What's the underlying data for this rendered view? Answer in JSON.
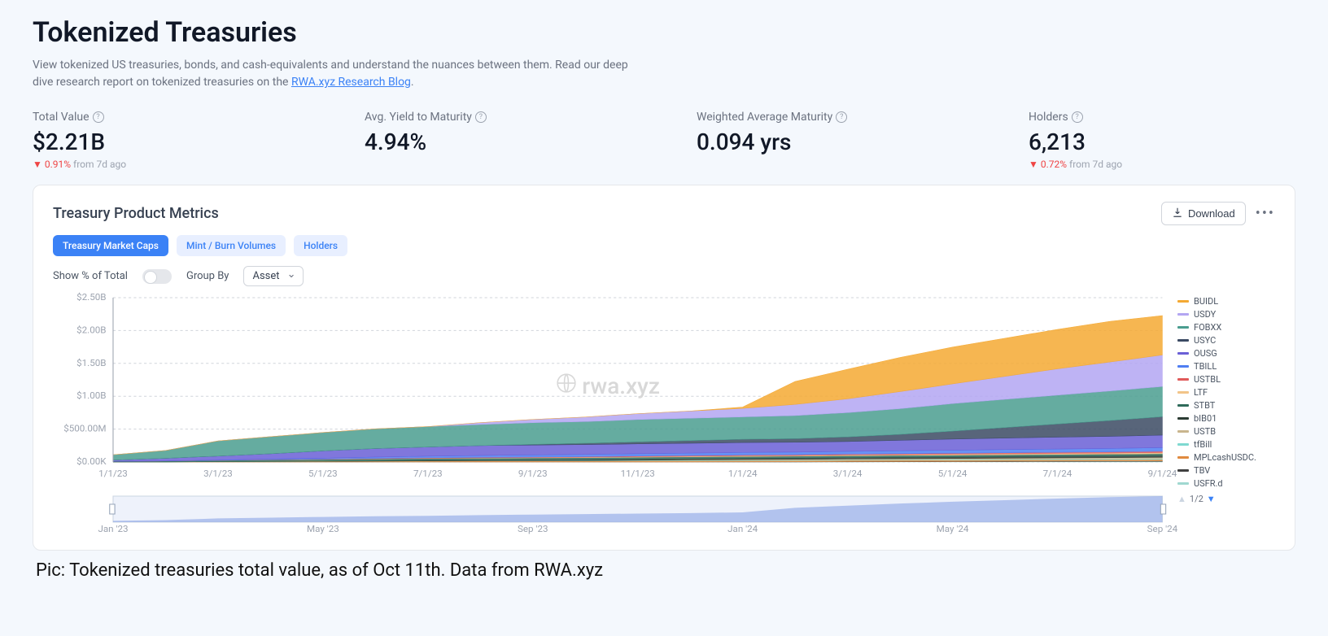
{
  "header": {
    "title": "Tokenized Treasuries",
    "subtitle_pre": "View tokenized US treasuries, bonds, and cash-equivalents and understand the nuances between them. Read our deep dive research report on tokenized treasuries on the ",
    "subtitle_link": "RWA.xyz Research Blog",
    "subtitle_post": "."
  },
  "metrics": [
    {
      "label": "Total Value",
      "value": "$2.21B",
      "change_pct": "0.91%",
      "change_dir": "down",
      "change_suffix": "from 7d ago"
    },
    {
      "label": "Avg. Yield to Maturity",
      "value": "4.94%",
      "change_pct": "",
      "change_dir": "",
      "change_suffix": ""
    },
    {
      "label": "Weighted Average Maturity",
      "value": "0.094 yrs",
      "change_pct": "",
      "change_dir": "",
      "change_suffix": ""
    },
    {
      "label": "Holders",
      "value": "6,213",
      "change_pct": "0.72%",
      "change_dir": "down",
      "change_suffix": "from 7d ago"
    }
  ],
  "card": {
    "title": "Treasury Product Metrics",
    "download_label": "Download",
    "tabs": [
      {
        "label": "Treasury Market Caps",
        "active": true
      },
      {
        "label": "Mint / Burn Volumes",
        "active": false
      },
      {
        "label": "Holders",
        "active": false
      }
    ],
    "show_pct_label": "Show % of Total",
    "show_pct_on": false,
    "groupby_label": "Group By",
    "groupby_value": "Asset"
  },
  "chart": {
    "type": "stacked-area",
    "background_color": "#ffffff",
    "grid_color": "#d1d5db",
    "axis_font_size": 11,
    "axis_color": "#9ca3af",
    "ylim": [
      0,
      2500000000
    ],
    "y_ticks": [
      {
        "v": 0,
        "label": "$0.00K"
      },
      {
        "v": 500000000,
        "label": "$500.00M"
      },
      {
        "v": 1000000000,
        "label": "$1.00B"
      },
      {
        "v": 1500000000,
        "label": "$1.50B"
      },
      {
        "v": 2000000000,
        "label": "$2.00B"
      },
      {
        "v": 2500000000,
        "label": "$2.50B"
      }
    ],
    "x_ticks": [
      "1/1/23",
      "3/1/23",
      "5/1/23",
      "7/1/23",
      "9/1/23",
      "11/1/23",
      "1/1/24",
      "3/1/24",
      "5/1/24",
      "7/1/24",
      "9/1/24"
    ],
    "watermark": "rwa.xyz",
    "legend_page": "1/2",
    "series": [
      {
        "name": "BUIDL",
        "color": "#f4a933",
        "values": [
          0,
          0,
          0,
          0,
          0,
          0,
          0,
          0,
          0,
          0,
          0,
          0,
          20,
          350,
          450,
          520,
          560,
          580,
          600,
          620,
          600
        ]
      },
      {
        "name": "USDY",
        "color": "#b3a6f2",
        "values": [
          0,
          0,
          0,
          0,
          0,
          0,
          0,
          30,
          50,
          70,
          90,
          110,
          130,
          170,
          210,
          260,
          300,
          350,
          400,
          440,
          480
        ]
      },
      {
        "name": "FOBXX",
        "color": "#4a9d8f",
        "values": [
          80,
          120,
          230,
          260,
          280,
          300,
          310,
          320,
          330,
          330,
          340,
          340,
          340,
          350,
          370,
          390,
          420,
          430,
          440,
          450,
          460
        ]
      },
      {
        "name": "USYC",
        "color": "#3b4a63",
        "values": [
          0,
          0,
          0,
          0,
          0,
          0,
          0,
          0,
          10,
          20,
          30,
          40,
          50,
          55,
          70,
          90,
          120,
          160,
          200,
          240,
          280
        ]
      },
      {
        "name": "OUSG",
        "color": "#6a5fd6",
        "values": [
          20,
          40,
          60,
          80,
          110,
          130,
          140,
          150,
          150,
          150,
          150,
          150,
          150,
          150,
          150,
          160,
          170,
          175,
          180,
          185,
          190
        ]
      },
      {
        "name": "TBILL",
        "color": "#4f7ef2",
        "values": [
          0,
          0,
          5,
          10,
          15,
          20,
          25,
          30,
          32,
          34,
          36,
          38,
          40,
          40,
          42,
          44,
          46,
          48,
          50,
          52,
          55
        ]
      },
      {
        "name": "USTBL",
        "color": "#e05a5a",
        "values": [
          0,
          0,
          0,
          2,
          3,
          4,
          5,
          6,
          7,
          8,
          9,
          10,
          11,
          12,
          13,
          14,
          15,
          16,
          17,
          18,
          20
        ]
      },
      {
        "name": "LTF",
        "color": "#f2c488",
        "values": [
          0,
          0,
          0,
          0,
          2,
          3,
          4,
          5,
          6,
          7,
          8,
          9,
          10,
          10,
          11,
          12,
          13,
          14,
          15,
          16,
          18
        ]
      },
      {
        "name": "STBT",
        "color": "#2f6b5a",
        "values": [
          10,
          15,
          20,
          25,
          28,
          30,
          30,
          30,
          30,
          30,
          30,
          30,
          30,
          30,
          30,
          30,
          30,
          30,
          30,
          30,
          30
        ]
      },
      {
        "name": "bIB01",
        "color": "#2b3b33",
        "values": [
          0,
          0,
          0,
          0,
          0,
          5,
          8,
          10,
          12,
          14,
          15,
          16,
          17,
          18,
          19,
          20,
          21,
          22,
          23,
          24,
          25
        ]
      },
      {
        "name": "USTB",
        "color": "#c9b58d",
        "values": [
          0,
          0,
          0,
          0,
          0,
          0,
          0,
          0,
          0,
          0,
          5,
          8,
          10,
          12,
          13,
          14,
          15,
          16,
          17,
          18,
          20
        ]
      },
      {
        "name": "tfBill",
        "color": "#7fd9d0",
        "values": [
          0,
          0,
          0,
          0,
          0,
          0,
          2,
          3,
          4,
          5,
          6,
          7,
          8,
          8,
          9,
          10,
          10,
          11,
          12,
          12,
          13
        ]
      },
      {
        "name": "MPLcashUSDC.",
        "color": "#e08a3f",
        "values": [
          0,
          0,
          5,
          8,
          10,
          12,
          14,
          15,
          16,
          16,
          16,
          17,
          17,
          17,
          18,
          18,
          18,
          19,
          19,
          20,
          20
        ]
      },
      {
        "name": "TBV",
        "color": "#404040",
        "values": [
          0,
          0,
          0,
          0,
          0,
          0,
          0,
          0,
          0,
          0,
          0,
          0,
          2,
          3,
          4,
          5,
          6,
          7,
          8,
          8,
          9
        ]
      },
      {
        "name": "USFR.d",
        "color": "#a0d8d0",
        "values": [
          0,
          0,
          0,
          0,
          0,
          0,
          0,
          0,
          0,
          0,
          0,
          0,
          0,
          0,
          2,
          3,
          4,
          5,
          6,
          7,
          8
        ]
      }
    ],
    "minichart": {
      "fill": "#8aa4e6",
      "x_ticks": [
        "Jan '23",
        "May '23",
        "Sep '23",
        "Jan '24",
        "May '24",
        "Sep '24"
      ]
    }
  },
  "caption": "Pic: Tokenized treasuries total value, as of Oct 11th. Data from RWA.xyz"
}
